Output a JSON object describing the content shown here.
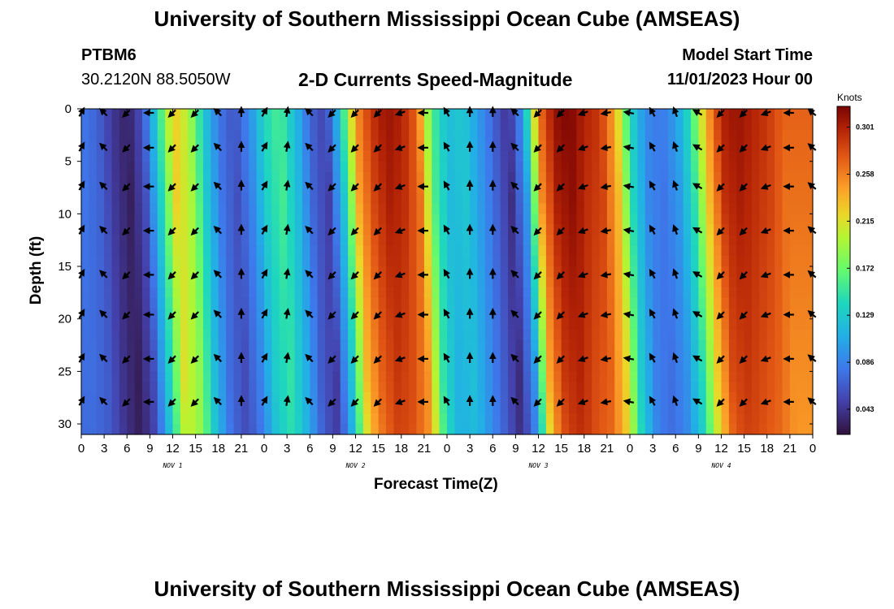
{
  "header": {
    "title": "University of Southern Mississippi Ocean Cube (AMSEAS)",
    "station_id": "PTBM6",
    "station_coords": "30.2120N  88.5050W",
    "chart_title": "2-D Currents Speed-Magnitude",
    "model_start_label": "Model Start Time",
    "model_start_value": "11/01/2023 Hour 00"
  },
  "footer": {
    "title": "University of Southern Mississippi Ocean Cube (AMSEAS)"
  },
  "chart_data": {
    "type": "heatmap",
    "title": "2-D Currents Speed-Magnitude",
    "xlabel": "Forecast Time(Z)",
    "ylabel": "Depth (ft)",
    "x_range_hours": [
      0,
      96
    ],
    "y_range_ft": [
      0,
      31
    ],
    "x_tick_labels": [
      "0",
      "3",
      "6",
      "9",
      "12",
      "15",
      "18",
      "21",
      "0",
      "3",
      "6",
      "9",
      "12",
      "15",
      "18",
      "21",
      "0",
      "3",
      "6",
      "9",
      "12",
      "15",
      "18",
      "21",
      "0",
      "3",
      "6",
      "9",
      "12",
      "15",
      "18",
      "21",
      "0"
    ],
    "y_ticks": [
      0,
      5,
      10,
      15,
      20,
      25,
      30
    ],
    "y_tick_labels": [
      "0",
      "5",
      "10",
      "15",
      "20",
      "25",
      "30"
    ],
    "day_labels": [
      {
        "label": "NOV 1",
        "hour": 12
      },
      {
        "label": "NOV 2",
        "hour": 36
      },
      {
        "label": "NOV 3",
        "hour": 60
      },
      {
        "label": "NOV 4",
        "hour": 84
      }
    ],
    "colorbar": {
      "unit": "Knots",
      "min": 0.02,
      "max": 0.32,
      "tick_values": [
        0.043,
        0.086,
        0.129,
        0.172,
        0.215,
        0.258,
        0.301
      ],
      "tick_labels": [
        "0.043",
        "0.086",
        "0.129",
        "0.172",
        "0.215",
        "0.258",
        "0.301"
      ]
    },
    "speed_profile": {
      "description": "approximate surface speed (knots) by forecast hour",
      "hours": [
        0,
        2,
        4,
        6,
        8,
        10,
        12,
        14,
        16,
        18,
        20,
        22,
        24,
        26,
        28,
        30,
        32,
        34,
        36,
        38,
        40,
        42,
        44,
        46,
        48,
        50,
        52,
        54,
        56,
        58,
        60,
        62,
        64,
        66,
        68,
        70,
        72,
        74,
        76,
        78,
        80,
        82,
        84,
        86,
        88,
        90,
        92,
        94,
        96
      ],
      "values": [
        0.08,
        0.07,
        0.045,
        0.03,
        0.06,
        0.14,
        0.23,
        0.2,
        0.13,
        0.08,
        0.06,
        0.09,
        0.14,
        0.16,
        0.12,
        0.07,
        0.05,
        0.13,
        0.25,
        0.29,
        0.31,
        0.3,
        0.27,
        0.16,
        0.12,
        0.13,
        0.1,
        0.07,
        0.04,
        0.1,
        0.26,
        0.31,
        0.32,
        0.3,
        0.29,
        0.24,
        0.14,
        0.09,
        0.08,
        0.1,
        0.15,
        0.24,
        0.3,
        0.31,
        0.3,
        0.29,
        0.27,
        0.27,
        0.27
      ]
    },
    "vector_rows_ft": [
      0,
      3.7,
      7.4,
      11.6,
      15.8,
      19.6,
      23.8,
      27.9
    ],
    "vector_directions_deg": {
      "description": "approximate arrow heading (degrees, 0 = north/up, clockwise) by forecast hour",
      "hours": [
        0,
        3,
        6,
        9,
        12,
        15,
        18,
        21,
        24,
        27,
        30,
        33,
        36,
        39,
        42,
        45,
        48,
        51,
        54,
        57,
        60,
        63,
        66,
        69,
        72,
        75,
        78,
        81,
        84,
        87,
        90,
        93,
        96
      ],
      "values": [
        30,
        315,
        225,
        270,
        225,
        225,
        315,
        0,
        30,
        10,
        315,
        225,
        225,
        225,
        250,
        270,
        330,
        0,
        0,
        315,
        225,
        225,
        250,
        260,
        280,
        330,
        340,
        300,
        225,
        225,
        250,
        270,
        310
      ]
    }
  }
}
